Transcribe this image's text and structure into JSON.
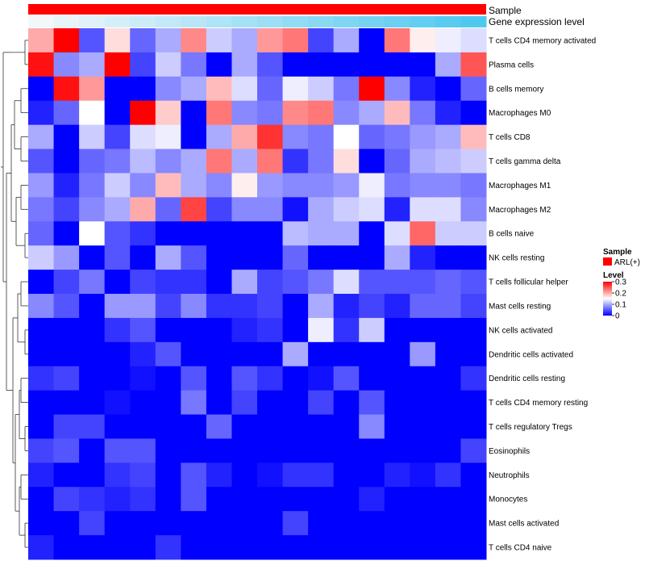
{
  "chart_data": {
    "type": "heatmap",
    "title": "",
    "annotations": [
      {
        "name": "Sample",
        "values": [
          "ARL(+)"
        ],
        "color": "#ff0000"
      },
      {
        "name": "Gene expression level",
        "gradient": [
          "#f2f7fa",
          "#4fc8f0"
        ]
      }
    ],
    "rows": [
      "T cells CD4 memory activated",
      "Plasma cells",
      "B cells memory",
      "Macrophages M0",
      "T cells CD8",
      "T cells gamma delta",
      "Macrophages M1",
      "Macrophages M2",
      "B cells naive",
      "NK cells resting",
      "T cells follicular helper",
      "Mast cells resting",
      "NK cells activated",
      "Dendritic cells activated",
      "Dendritic cells resting",
      "T cells CD4 memory resting",
      "T cells regulatory  Tregs",
      "Eosinophils",
      "Neutrophils",
      "Monocytes",
      "Mast cells activated",
      "T cells CD4 naive"
    ],
    "n_columns": 18,
    "values": [
      [
        0.2,
        0.3,
        0.05,
        0.17,
        0.06,
        0.1,
        0.22,
        0.12,
        0.1,
        0.21,
        0.23,
        0.04,
        0.1,
        0.0,
        0.23,
        0.16,
        0.14,
        0.13
      ],
      [
        0.29,
        0.08,
        0.1,
        0.3,
        0.04,
        0.12,
        0.07,
        0.0,
        0.1,
        0.05,
        0.0,
        0.0,
        0.0,
        0.0,
        0.0,
        0.0,
        0.1,
        0.25
      ],
      [
        0.0,
        0.29,
        0.21,
        0.0,
        0.0,
        0.08,
        0.1,
        0.19,
        0.13,
        0.06,
        0.14,
        0.12,
        0.07,
        0.3,
        0.08,
        0.02,
        0.0,
        0.06
      ],
      [
        0.02,
        0.06,
        0.15,
        0.0,
        0.3,
        0.18,
        0.0,
        0.23,
        0.08,
        0.07,
        0.22,
        0.23,
        0.08,
        0.1,
        0.19,
        0.07,
        0.02,
        0.0
      ],
      [
        0.1,
        0.0,
        0.12,
        0.04,
        0.13,
        0.14,
        0.0,
        0.1,
        0.2,
        0.27,
        0.08,
        0.07,
        0.15,
        0.06,
        0.07,
        0.09,
        0.1,
        0.19
      ],
      [
        0.05,
        0.0,
        0.06,
        0.07,
        0.11,
        0.08,
        0.1,
        0.23,
        0.1,
        0.23,
        0.03,
        0.07,
        0.17,
        0.0,
        0.06,
        0.1,
        0.11,
        0.12
      ],
      [
        0.09,
        0.02,
        0.07,
        0.12,
        0.08,
        0.19,
        0.1,
        0.08,
        0.16,
        0.09,
        0.08,
        0.08,
        0.09,
        0.14,
        0.07,
        0.08,
        0.08,
        0.07
      ],
      [
        0.07,
        0.04,
        0.08,
        0.1,
        0.2,
        0.06,
        0.26,
        0.04,
        0.08,
        0.08,
        0.01,
        0.1,
        0.12,
        0.13,
        0.02,
        0.13,
        0.13,
        0.08
      ],
      [
        0.06,
        0.0,
        0.15,
        0.05,
        0.03,
        0.0,
        0.0,
        0.0,
        0.0,
        0.0,
        0.11,
        0.1,
        0.1,
        0.0,
        0.13,
        0.24,
        0.12,
        0.12
      ],
      [
        0.12,
        0.09,
        0.0,
        0.05,
        0.0,
        0.1,
        0.05,
        0.0,
        0.0,
        0.0,
        0.06,
        0.0,
        0.0,
        0.0,
        0.1,
        0.02,
        0.0,
        0.0
      ],
      [
        0.0,
        0.04,
        0.07,
        0.0,
        0.04,
        0.03,
        0.03,
        0.0,
        0.1,
        0.04,
        0.05,
        0.07,
        0.13,
        0.05,
        0.05,
        0.05,
        0.06,
        0.05
      ],
      [
        0.08,
        0.05,
        0.0,
        0.09,
        0.09,
        0.04,
        0.08,
        0.03,
        0.03,
        0.04,
        0.0,
        0.1,
        0.02,
        0.04,
        0.02,
        0.06,
        0.06,
        0.04
      ],
      [
        0.0,
        0.0,
        0.0,
        0.03,
        0.05,
        0.0,
        0.0,
        0.0,
        0.02,
        0.03,
        0.0,
        0.14,
        0.03,
        0.12,
        0.0,
        0.0,
        0.0,
        0.0
      ],
      [
        0.0,
        0.0,
        0.0,
        0.0,
        0.02,
        0.05,
        0.0,
        0.0,
        0.0,
        0.0,
        0.1,
        0.0,
        0.0,
        0.0,
        0.0,
        0.09,
        0.0,
        0.0
      ],
      [
        0.03,
        0.04,
        0.0,
        0.0,
        0.01,
        0.0,
        0.05,
        0.0,
        0.05,
        0.03,
        0.0,
        0.01,
        0.05,
        0.0,
        0.0,
        0.0,
        0.0,
        0.03
      ],
      [
        0.0,
        0.0,
        0.0,
        0.01,
        0.0,
        0.0,
        0.07,
        0.0,
        0.04,
        0.0,
        0.0,
        0.04,
        0.0,
        0.05,
        0.0,
        0.0,
        0.0,
        0.0
      ],
      [
        0.0,
        0.04,
        0.04,
        0.0,
        0.0,
        0.0,
        0.0,
        0.06,
        0.0,
        0.0,
        0.0,
        0.0,
        0.0,
        0.08,
        0.0,
        0.0,
        0.0,
        0.0
      ],
      [
        0.04,
        0.05,
        0.0,
        0.05,
        0.05,
        0.0,
        0.0,
        0.0,
        0.0,
        0.0,
        0.0,
        0.0,
        0.0,
        0.0,
        0.0,
        0.0,
        0.0,
        0.04
      ],
      [
        0.02,
        0.0,
        0.0,
        0.03,
        0.04,
        0.0,
        0.05,
        0.02,
        0.0,
        0.01,
        0.03,
        0.03,
        0.0,
        0.0,
        0.02,
        0.01,
        0.03,
        0.0
      ],
      [
        0.0,
        0.04,
        0.03,
        0.02,
        0.03,
        0.0,
        0.05,
        0.0,
        0.0,
        0.0,
        0.0,
        0.0,
        0.0,
        0.02,
        0.0,
        0.0,
        0.0,
        0.0
      ],
      [
        0.0,
        0.0,
        0.04,
        0.0,
        0.0,
        0.0,
        0.0,
        0.0,
        0.0,
        0.0,
        0.04,
        0.0,
        0.0,
        0.0,
        0.0,
        0.0,
        0.0,
        0.0
      ],
      [
        0.02,
        0.0,
        0.0,
        0.0,
        0.0,
        0.03,
        0.0,
        0.0,
        0.0,
        0.0,
        0.0,
        0.0,
        0.0,
        0.0,
        0.0,
        0.0,
        0.0,
        0.0
      ]
    ],
    "color_scale": {
      "min": 0,
      "mid": 0.15,
      "max": 0.3,
      "colors": [
        "#0000ff",
        "#ffffff",
        "#ff0000"
      ]
    },
    "legend": {
      "sample_title": "Sample",
      "sample_entry": "ARL(+)",
      "level_title": "Level",
      "ticks": [
        "0.3",
        "0.2",
        "0.1",
        "0"
      ],
      "tick_values": [
        0.3,
        0.2,
        0.1,
        0
      ]
    }
  }
}
